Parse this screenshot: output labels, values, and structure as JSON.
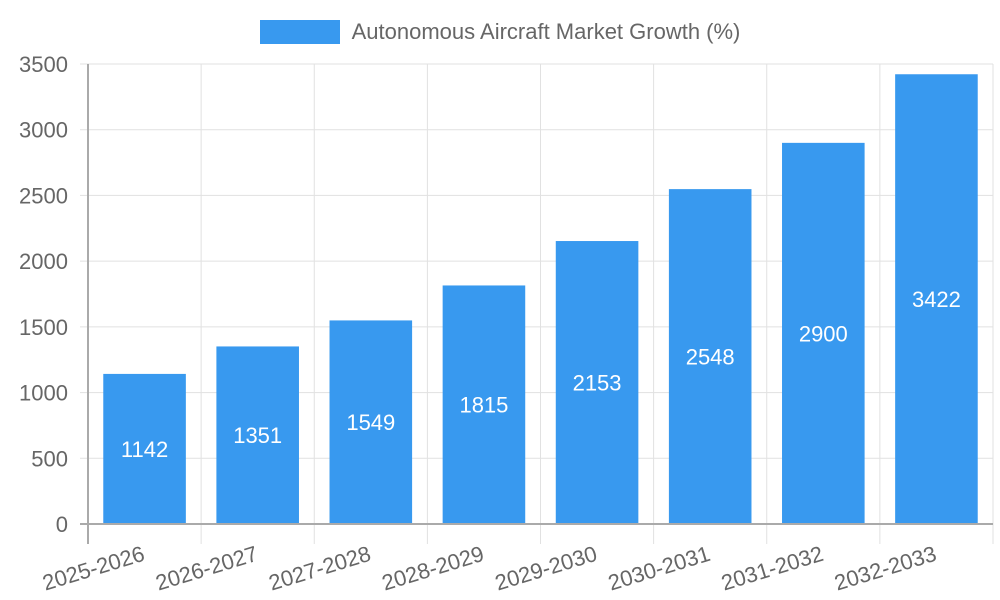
{
  "chart_data": {
    "type": "bar",
    "title": "",
    "legend": [
      "Autonomous Aircraft Market Growth (%)"
    ],
    "legend_position": "top",
    "categories": [
      "2025-2026",
      "2026-2027",
      "2027-2028",
      "2028-2029",
      "2029-2030",
      "2030-2031",
      "2031-2032",
      "2032-2033"
    ],
    "series": [
      {
        "name": "Autonomous Aircraft Market Growth (%)",
        "values": [
          1142,
          1351,
          1549,
          1815,
          2153,
          2548,
          2900,
          3422
        ],
        "color": "#3899ef"
      }
    ],
    "xlabel": "",
    "ylabel": "",
    "ylim": [
      0,
      3500
    ],
    "yticks": [
      0,
      500,
      1000,
      1500,
      2000,
      2500,
      3000,
      3500
    ],
    "grid": true,
    "data_labels": true
  },
  "colors": {
    "bar": "#3899ef",
    "grid": "#e1e1e1",
    "axis": "#aaaaaa",
    "tick_text": "#666666",
    "bar_label": "#ffffff"
  }
}
